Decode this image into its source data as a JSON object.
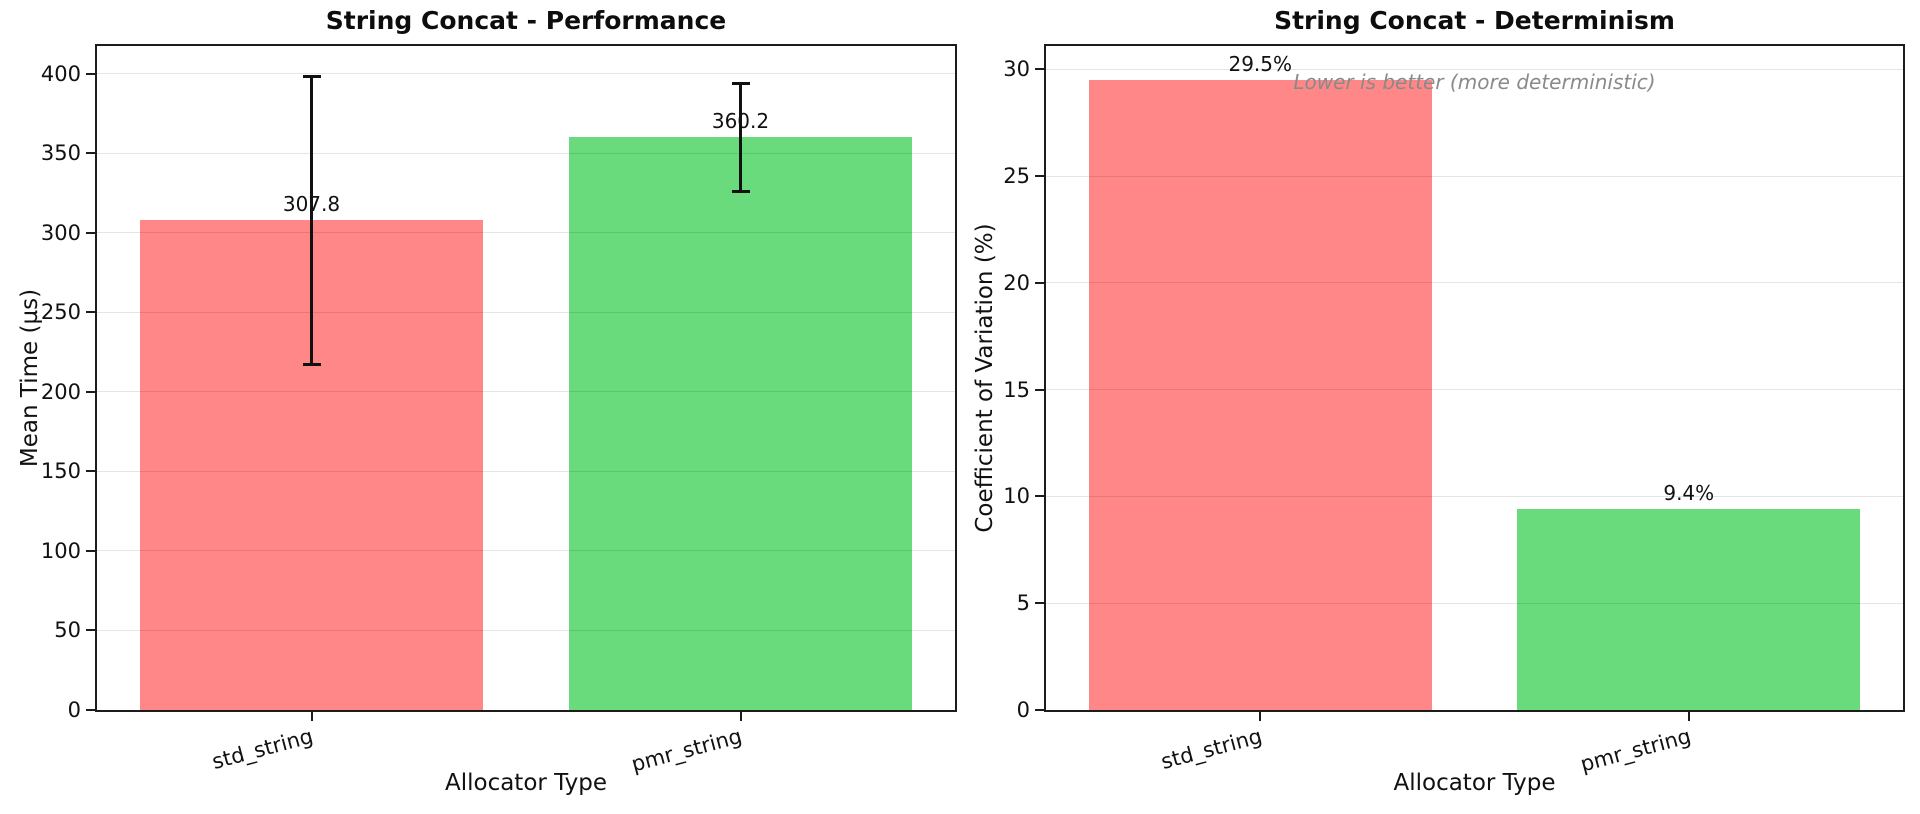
{
  "figure": {
    "background": "#ffffff",
    "bar_color_std": "#ff8787",
    "bar_color_pmr": "#69db7c",
    "annotation_color": "#8a8a8a"
  },
  "chart_data": [
    {
      "type": "bar",
      "title": "String Concat - Performance",
      "xlabel": "Allocator Type",
      "ylabel": "Mean Time (µs)",
      "categories": [
        "std_string",
        "pmr_string"
      ],
      "values": [
        307.8,
        360.2
      ],
      "bar_labels": [
        "307.8",
        "360.2"
      ],
      "errors": [
        90.8,
        33.9
      ],
      "bar_colors": [
        "#ff8787",
        "#69db7c"
      ],
      "ylim": [
        0,
        417.5
      ],
      "yticks": [
        0,
        50,
        100,
        150,
        200,
        250,
        300,
        350,
        400
      ],
      "grid": true,
      "legend": "none",
      "tick_rotation_deg": 15
    },
    {
      "type": "bar",
      "title": "String Concat - Determinism",
      "xlabel": "Allocator Type",
      "ylabel": "Coefficient of Variation (%)",
      "categories": [
        "std_string",
        "pmr_string"
      ],
      "values": [
        29.5,
        9.4
      ],
      "bar_labels": [
        "29.5%",
        "9.4%"
      ],
      "bar_colors": [
        "#ff8787",
        "#69db7c"
      ],
      "ylim": [
        0,
        31.1
      ],
      "yticks": [
        0,
        5,
        10,
        15,
        20,
        25,
        30
      ],
      "grid": true,
      "legend": "none",
      "annotation": {
        "text": "Lower is better (more deterministic)",
        "color": "#8a8a8a",
        "style": "italic"
      },
      "tick_rotation_deg": 15
    }
  ]
}
